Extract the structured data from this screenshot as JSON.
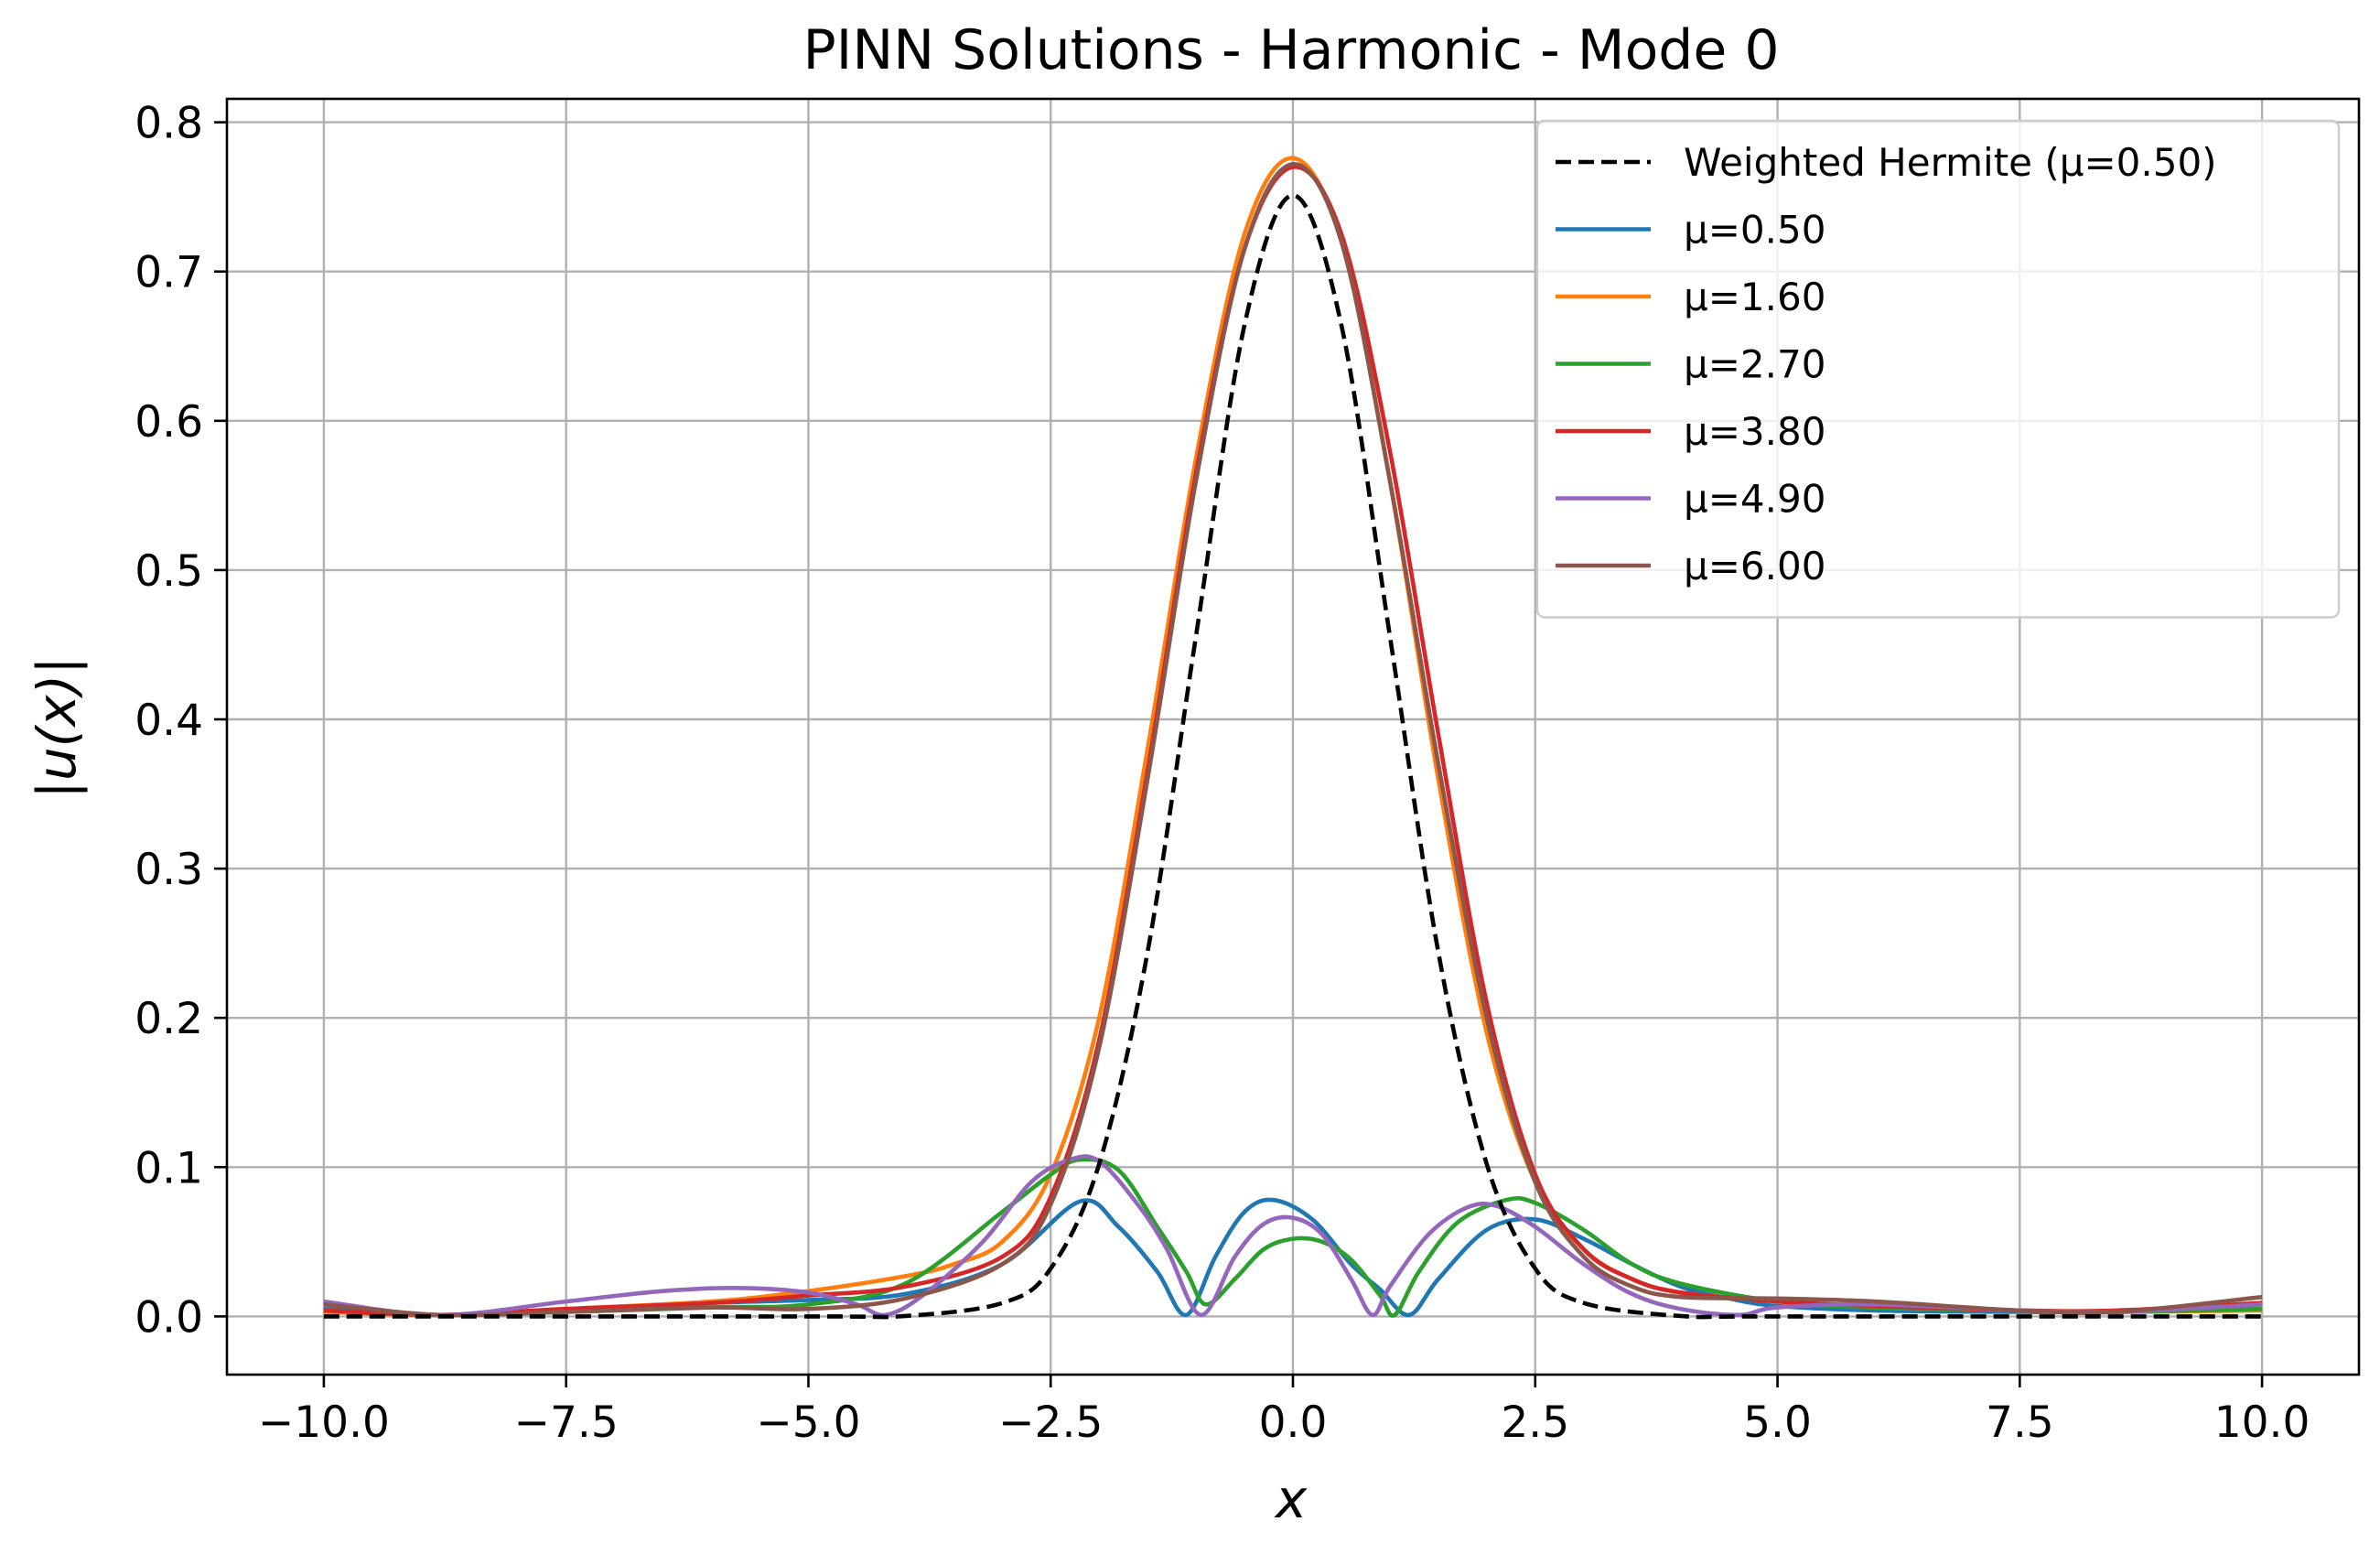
{
  "chart_data": {
    "type": "line",
    "title": "PINN Solutions - Harmonic - Mode 0",
    "xlabel": "x",
    "ylabel": "|u(x)|",
    "xlim": [
      -11.0,
      11.0
    ],
    "ylim": [
      -0.039,
      0.8157
    ],
    "xticks": [
      -10.0,
      -7.5,
      -5.0,
      -2.5,
      0.0,
      2.5,
      5.0,
      7.5,
      10.0
    ],
    "xtick_labels": [
      "−10.0",
      "−7.5",
      "−5.0",
      "−2.5",
      "0.0",
      "2.5",
      "5.0",
      "7.5",
      "10.0"
    ],
    "yticks": [
      0.0,
      0.1,
      0.2,
      0.3,
      0.4,
      0.5,
      0.6,
      0.7,
      0.8
    ],
    "ytick_labels": [
      "0.0",
      "0.1",
      "0.2",
      "0.3",
      "0.4",
      "0.5",
      "0.6",
      "0.7",
      "0.8"
    ],
    "grid": true,
    "legend_position": "top-right",
    "series": [
      {
        "name": "Weighted Hermite (μ=0.50)",
        "color": "#000000",
        "style": "dashed",
        "x": [
          -10.0,
          -5.0,
          -4.0,
          -3.0,
          -2.5,
          -2.0,
          -1.5,
          -1.0,
          -0.5,
          0.0,
          0.5,
          1.0,
          1.5,
          2.0,
          2.5,
          3.0,
          4.0,
          5.0,
          10.0
        ],
        "y": [
          0.0,
          0.0,
          0.0003,
          0.009,
          0.032,
          0.102,
          0.244,
          0.456,
          0.664,
          0.751,
          0.664,
          0.456,
          0.244,
          0.102,
          0.032,
          0.009,
          0.0003,
          0.0,
          0.0
        ]
      },
      {
        "name": "μ=0.50",
        "color": "#1f77b4",
        "style": "solid",
        "x": [
          -10.0,
          -8.8,
          -7.5,
          -6.0,
          -5.0,
          -4.0,
          -3.0,
          -2.2,
          -1.8,
          -1.4,
          -1.1,
          -0.8,
          -0.5,
          -0.2,
          0.2,
          0.6,
          0.9,
          1.2,
          1.5,
          2.0,
          2.5,
          3.0,
          3.5,
          4.0,
          4.5,
          5.0,
          6.0,
          7.5,
          8.5,
          10.0
        ],
        "y": [
          0.005,
          0.001,
          0.004,
          0.009,
          0.011,
          0.015,
          0.035,
          0.077,
          0.06,
          0.03,
          0.001,
          0.04,
          0.07,
          0.078,
          0.065,
          0.035,
          0.018,
          0.001,
          0.025,
          0.058,
          0.065,
          0.052,
          0.035,
          0.02,
          0.012,
          0.007,
          0.004,
          0.003,
          0.003,
          0.005
        ]
      },
      {
        "name": "μ=1.60",
        "color": "#ff7f0e",
        "style": "solid",
        "x": [
          -10.0,
          -8.8,
          -7.5,
          -6.0,
          -5.0,
          -4.0,
          -3.5,
          -3.0,
          -2.5,
          -2.0,
          -1.5,
          -1.0,
          -0.5,
          0.0,
          0.5,
          1.0,
          1.5,
          2.0,
          2.5,
          3.0,
          3.5,
          4.0,
          5.0,
          6.0,
          7.5,
          8.5,
          10.0
        ],
        "y": [
          0.003,
          0.001,
          0.005,
          0.01,
          0.017,
          0.027,
          0.035,
          0.05,
          0.095,
          0.2,
          0.38,
          0.575,
          0.725,
          0.776,
          0.72,
          0.56,
          0.36,
          0.19,
          0.09,
          0.045,
          0.025,
          0.016,
          0.01,
          0.006,
          0.004,
          0.003,
          0.004
        ]
      },
      {
        "name": "μ=2.70",
        "color": "#2ca02c",
        "style": "solid",
        "x": [
          -10.0,
          -8.8,
          -7.5,
          -6.0,
          -5.0,
          -4.0,
          -3.0,
          -2.5,
          -2.2,
          -1.8,
          -1.4,
          -1.1,
          -0.9,
          -0.6,
          -0.3,
          0.0,
          0.3,
          0.6,
          0.9,
          1.05,
          1.3,
          1.7,
          2.2,
          2.5,
          3.0,
          3.5,
          4.0,
          5.0,
          6.0,
          7.5,
          8.5,
          10.0
        ],
        "y": [
          0.004,
          0.001,
          0.003,
          0.006,
          0.008,
          0.022,
          0.07,
          0.095,
          0.105,
          0.098,
          0.06,
          0.03,
          0.008,
          0.025,
          0.045,
          0.052,
          0.05,
          0.038,
          0.014,
          0.001,
          0.03,
          0.063,
          0.078,
          0.076,
          0.058,
          0.035,
          0.022,
          0.01,
          0.006,
          0.004,
          0.003,
          0.005
        ]
      },
      {
        "name": "μ=3.80",
        "color": "#d62728",
        "style": "solid",
        "x": [
          -10.0,
          -8.8,
          -7.5,
          -6.0,
          -5.0,
          -4.0,
          -3.0,
          -2.5,
          -2.0,
          -1.5,
          -1.0,
          -0.5,
          0.0,
          0.5,
          1.0,
          1.5,
          2.0,
          2.5,
          3.0,
          3.5,
          4.0,
          5.0,
          6.0,
          7.5,
          8.5,
          10.0
        ],
        "y": [
          0.004,
          0.001,
          0.005,
          0.009,
          0.014,
          0.02,
          0.04,
          0.08,
          0.185,
          0.365,
          0.565,
          0.715,
          0.77,
          0.725,
          0.58,
          0.39,
          0.21,
          0.095,
          0.045,
          0.025,
          0.016,
          0.01,
          0.007,
          0.004,
          0.004,
          0.009
        ]
      },
      {
        "name": "μ=4.90",
        "color": "#9467bd",
        "style": "solid",
        "x": [
          -10.0,
          -8.8,
          -7.5,
          -6.5,
          -5.7,
          -5.0,
          -4.5,
          -4.2,
          -3.8,
          -3.2,
          -2.7,
          -2.3,
          -2.0,
          -1.6,
          -1.3,
          -0.95,
          -0.6,
          -0.3,
          0.0,
          0.3,
          0.6,
          0.82,
          1.0,
          1.4,
          1.8,
          2.1,
          2.5,
          3.0,
          3.5,
          4.0,
          4.6,
          5.0,
          6.0,
          7.5,
          8.5,
          10.0
        ],
        "y": [
          0.01,
          0.001,
          0.01,
          0.017,
          0.019,
          0.016,
          0.008,
          0.001,
          0.015,
          0.05,
          0.09,
          0.105,
          0.104,
          0.075,
          0.045,
          0.001,
          0.04,
          0.062,
          0.066,
          0.055,
          0.025,
          0.001,
          0.02,
          0.055,
          0.073,
          0.074,
          0.06,
          0.035,
          0.015,
          0.005,
          0.001,
          0.006,
          0.008,
          0.004,
          0.003,
          0.008
        ]
      },
      {
        "name": "μ=6.00",
        "color": "#8c564b",
        "style": "solid",
        "x": [
          -10.0,
          -8.8,
          -7.5,
          -6.0,
          -5.0,
          -4.0,
          -3.0,
          -2.5,
          -2.0,
          -1.5,
          -1.0,
          -0.5,
          0.0,
          0.5,
          1.0,
          1.5,
          2.0,
          2.5,
          3.0,
          3.5,
          4.0,
          5.0,
          6.0,
          7.5,
          8.5,
          10.0
        ],
        "y": [
          0.008,
          0.001,
          0.003,
          0.006,
          0.005,
          0.012,
          0.035,
          0.075,
          0.18,
          0.36,
          0.56,
          0.715,
          0.772,
          0.72,
          0.56,
          0.37,
          0.2,
          0.09,
          0.04,
          0.02,
          0.013,
          0.012,
          0.01,
          0.004,
          0.003,
          0.013
        ]
      }
    ]
  }
}
